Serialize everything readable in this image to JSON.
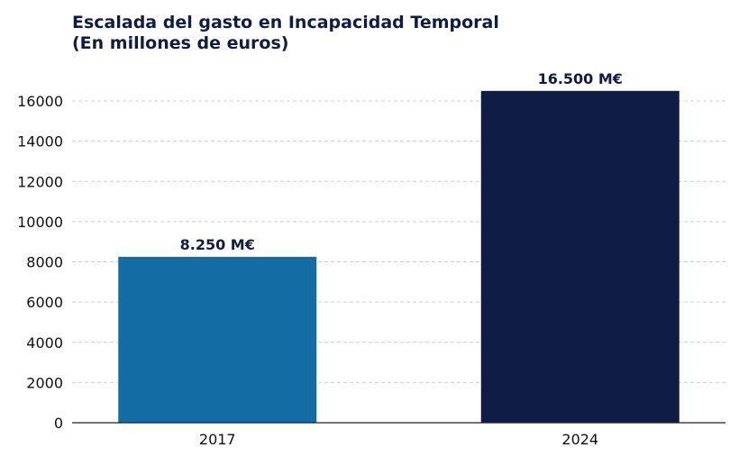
{
  "chart_data": {
    "type": "bar",
    "title": "Escalada del gasto en Incapacidad Temporal",
    "subtitle": "(En millones de euros)",
    "categories": [
      "2017",
      "2024"
    ],
    "values": [
      8250,
      16500
    ],
    "data_labels": [
      "8.250 M€",
      "16.500 M€"
    ],
    "colors": [
      "#146ca4",
      "#0f1c45"
    ],
    "title_color": "#0f1c45",
    "yticks": [
      0,
      2000,
      4000,
      6000,
      8000,
      10000,
      12000,
      14000,
      16000
    ],
    "ylim": [
      0,
      17400
    ],
    "grid": true,
    "xlabel": "",
    "ylabel": ""
  }
}
